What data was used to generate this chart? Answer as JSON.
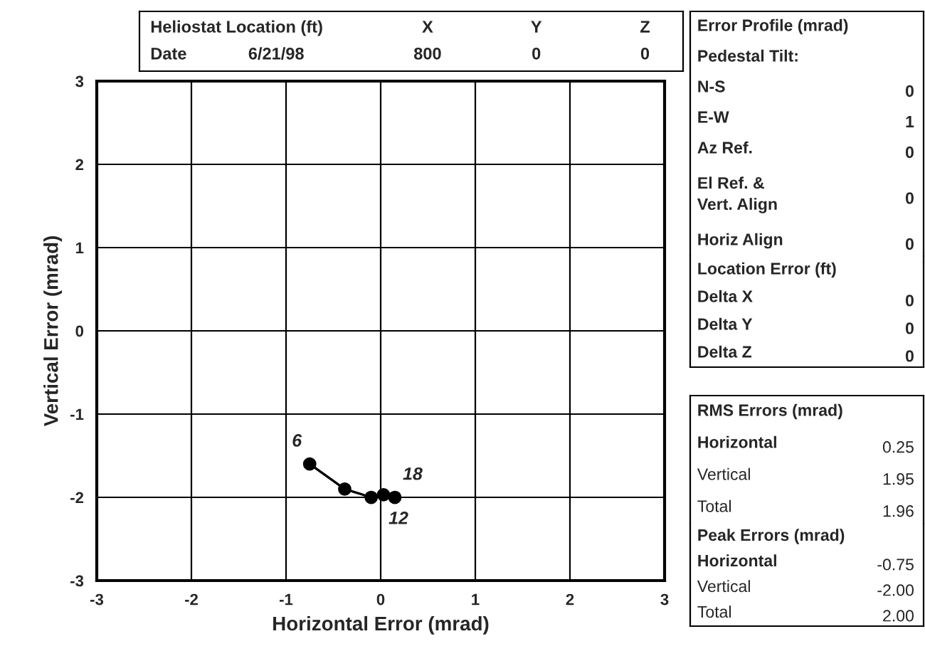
{
  "chart_data": [
    {
      "type": "line",
      "xlabel": "Horizontal Error (mrad)",
      "ylabel": "Vertical Error (mrad)",
      "x": [
        -0.75,
        -0.38,
        -0.1,
        0.03,
        0.15
      ],
      "series": [
        {
          "color": "#000000",
          "values": [
            -1.6,
            -1.9,
            -2.0,
            -1.97,
            -2.0
          ]
        }
      ],
      "marker": "circle",
      "line_style": "solid",
      "xlim": [
        -3,
        3
      ],
      "ylim": [
        -3,
        3
      ],
      "xticks": [
        -3,
        -2,
        -1,
        0,
        1,
        2,
        3
      ],
      "yticks": [
        -3,
        -2,
        -1,
        0,
        1,
        2,
        3
      ],
      "grid": true,
      "annotations": [
        {
          "text": "6",
          "x": -0.75,
          "y": -1.6
        },
        {
          "text": "18",
          "x": 0.15,
          "y": -2.0
        },
        {
          "text": "12",
          "x": 0.0,
          "y": -2.0
        }
      ]
    },
    {
      "type": "other",
      "title": "Heliostat Location (ft)",
      "categories": [
        "X",
        "Y",
        "Z"
      ],
      "values": [
        800,
        0,
        0
      ],
      "data_labels": true,
      "annotations": [
        "Date",
        "6/21/98"
      ]
    },
    {
      "type": "other",
      "title": "Error Profile (mrad)",
      "subtitle": "Pedestal Tilt:",
      "categories": [
        "N-S",
        "E-W",
        "Az Ref.",
        "El Ref. &\nVert. Align",
        "Horiz Align"
      ],
      "values": [
        0,
        1,
        0,
        0,
        0
      ],
      "data_labels": true
    },
    {
      "type": "other",
      "title": "Location Error (ft)",
      "categories": [
        "Delta X",
        "Delta Y",
        "Delta Z"
      ],
      "values": [
        0,
        0,
        0
      ],
      "data_labels": true
    },
    {
      "type": "other",
      "title": "RMS Errors (mrad)",
      "categories": [
        "Horizontal",
        "Vertical",
        "Total"
      ],
      "values": [
        0.25,
        1.95,
        1.96
      ],
      "value_labels": [
        "0.25",
        "1.95",
        "1.96"
      ]
    },
    {
      "type": "other",
      "title": "Peak Errors (mrad)",
      "categories": [
        "Horizontal",
        "Vertical",
        "Total"
      ],
      "values": [
        -0.75,
        -2.0,
        2.0
      ],
      "value_labels": [
        "-0.75",
        "-2.00",
        "2.00"
      ]
    }
  ]
}
